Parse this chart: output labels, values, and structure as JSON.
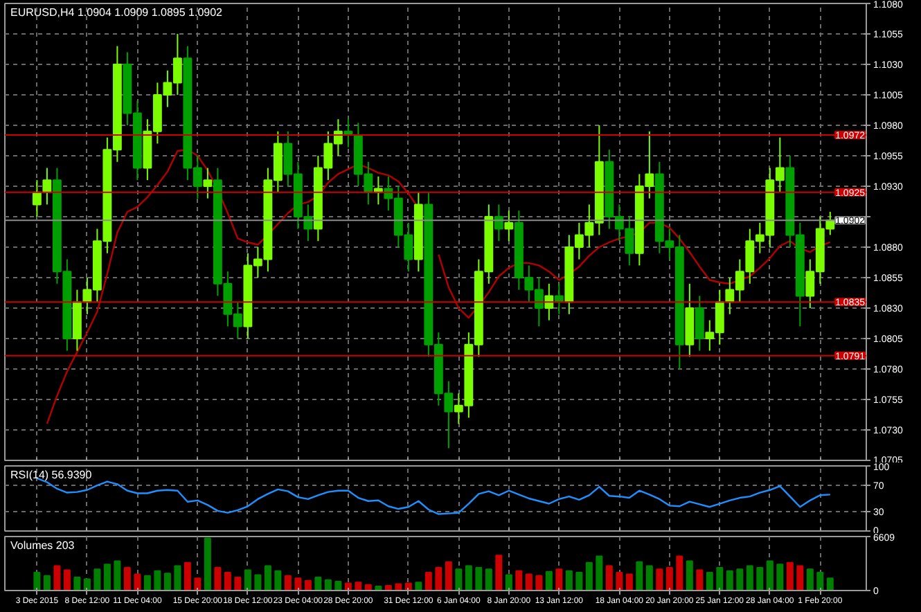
{
  "chart_data": [
    {
      "type": "candlestick",
      "title": "EURUSD,H4  1.0904 1.0909 1.0895 1.0902",
      "tick_labels": "y",
      "grid": true,
      "ohlc": [
        [
          1.0915,
          1.0935,
          1.0905,
          1.0925
        ],
        [
          1.0925,
          1.0945,
          1.0915,
          1.0935
        ],
        [
          1.0935,
          1.0945,
          1.085,
          1.086
        ],
        [
          1.086,
          1.087,
          1.0795,
          1.0805
        ],
        [
          1.0805,
          1.0845,
          1.0795,
          1.0835
        ],
        [
          1.0835,
          1.0855,
          1.0825,
          1.0845
        ],
        [
          1.0845,
          1.0895,
          1.0835,
          1.0885
        ],
        [
          1.0885,
          1.097,
          1.0875,
          1.096
        ],
        [
          1.096,
          1.1045,
          1.095,
          1.103
        ],
        [
          1.103,
          1.104,
          1.098,
          1.099
        ],
        [
          1.099,
          1.1,
          1.0935,
          1.0945
        ],
        [
          1.0945,
          1.0985,
          1.0935,
          1.0975
        ],
        [
          1.0975,
          1.1015,
          1.0965,
          1.1005
        ],
        [
          1.1005,
          1.1025,
          1.0995,
          1.1015
        ],
        [
          1.1015,
          1.1055,
          1.1005,
          1.1035
        ],
        [
          1.1035,
          1.1045,
          1.0935,
          1.0945
        ],
        [
          1.0945,
          1.0955,
          1.092,
          1.093
        ],
        [
          1.093,
          1.0945,
          1.092,
          1.0935
        ],
        [
          1.0935,
          1.0945,
          1.084,
          1.085
        ],
        [
          1.085,
          1.086,
          1.0815,
          1.0825
        ],
        [
          1.0825,
          1.0835,
          1.0805,
          1.0815
        ],
        [
          1.0815,
          1.0875,
          1.0805,
          1.0865
        ],
        [
          1.0865,
          1.088,
          1.0855,
          1.087
        ],
        [
          1.087,
          1.0945,
          1.086,
          1.0935
        ],
        [
          1.0935,
          1.0975,
          1.0925,
          1.0965
        ],
        [
          1.0965,
          1.0975,
          1.093,
          1.094
        ],
        [
          1.094,
          1.095,
          1.0895,
          1.0905
        ],
        [
          1.0905,
          1.0915,
          1.0885,
          1.0895
        ],
        [
          1.0895,
          1.0955,
          1.0885,
          1.0945
        ],
        [
          1.0945,
          1.0975,
          1.0935,
          1.0965
        ],
        [
          1.0965,
          1.0985,
          1.0955,
          1.0975
        ],
        [
          1.0975,
          1.0985,
          1.0962,
          1.0972
        ],
        [
          1.0972,
          1.0982,
          1.093,
          1.094
        ],
        [
          1.094,
          1.095,
          1.0915,
          1.0925
        ],
        [
          1.0925,
          1.0938,
          1.0915,
          1.0928
        ],
        [
          1.0928,
          1.0938,
          1.091,
          1.092
        ],
        [
          1.092,
          1.093,
          1.088,
          1.089
        ],
        [
          1.089,
          1.09,
          1.086,
          1.087
        ],
        [
          1.087,
          1.0925,
          1.086,
          1.0915
        ],
        [
          1.0915,
          1.0925,
          1.079,
          1.08
        ],
        [
          1.08,
          1.081,
          1.075,
          1.076
        ],
        [
          1.076,
          1.077,
          1.0715,
          1.0745
        ],
        [
          1.0745,
          1.076,
          1.0735,
          1.075
        ],
        [
          1.075,
          1.081,
          1.074,
          1.08
        ],
        [
          1.08,
          1.087,
          1.079,
          1.086
        ],
        [
          1.086,
          1.0915,
          1.085,
          1.0905
        ],
        [
          1.0905,
          1.0915,
          1.0885,
          1.0895
        ],
        [
          1.0895,
          1.091,
          1.0885,
          1.09
        ],
        [
          1.09,
          1.091,
          1.0845,
          1.0855
        ],
        [
          1.0855,
          1.0865,
          1.0835,
          1.0845
        ],
        [
          1.0845,
          1.0855,
          1.0815,
          1.083
        ],
        [
          1.083,
          1.085,
          1.082,
          1.084
        ],
        [
          1.084,
          1.085,
          1.0825,
          1.0835
        ],
        [
          1.0835,
          1.089,
          1.0825,
          1.088
        ],
        [
          1.088,
          1.09,
          1.087,
          1.089
        ],
        [
          1.089,
          1.0915,
          1.088,
          1.09
        ],
        [
          1.09,
          1.098,
          1.089,
          1.095
        ],
        [
          1.095,
          1.096,
          1.0895,
          1.0905
        ],
        [
          1.0905,
          1.0915,
          1.0885,
          1.0895
        ],
        [
          1.0895,
          1.0905,
          1.0865,
          1.0875
        ],
        [
          1.0875,
          1.094,
          1.0865,
          1.093
        ],
        [
          1.093,
          1.0975,
          1.092,
          1.094
        ],
        [
          1.094,
          1.095,
          1.0875,
          1.0885
        ],
        [
          1.0885,
          1.0895,
          1.087,
          1.088
        ],
        [
          1.088,
          1.089,
          1.078,
          1.08
        ],
        [
          1.08,
          1.085,
          1.079,
          1.083
        ],
        [
          1.083,
          1.084,
          1.0795,
          1.0805
        ],
        [
          1.0805,
          1.082,
          1.0795,
          1.081
        ],
        [
          1.081,
          1.0845,
          1.08,
          1.0835
        ],
        [
          1.0835,
          1.0855,
          1.0825,
          1.0845
        ],
        [
          1.0845,
          1.087,
          1.0835,
          1.086
        ],
        [
          1.086,
          1.0895,
          1.085,
          1.0885
        ],
        [
          1.0885,
          1.09,
          1.0875,
          1.089
        ],
        [
          1.089,
          1.0945,
          1.088,
          1.0935
        ],
        [
          1.0935,
          1.097,
          1.0925,
          1.0945
        ],
        [
          1.0945,
          1.0955,
          1.088,
          1.089
        ],
        [
          1.089,
          1.09,
          1.0815,
          1.084
        ],
        [
          1.084,
          1.087,
          1.083,
          1.086
        ],
        [
          1.086,
          1.0905,
          1.085,
          1.0895
        ],
        [
          1.0895,
          1.0909,
          1.089,
          1.0902
        ]
      ],
      "colors": [
        "#7cfc00",
        "#7cfc00",
        "#00a000",
        "#00a000",
        "#7cfc00",
        "#7cfc00",
        "#7cfc00",
        "#7cfc00",
        "#7cfc00",
        "#00a000",
        "#00a000",
        "#7cfc00",
        "#7cfc00",
        "#7cfc00",
        "#7cfc00",
        "#00a000",
        "#00a000",
        "#7cfc00",
        "#00a000",
        "#00a000",
        "#00a000",
        "#7cfc00",
        "#7cfc00",
        "#7cfc00",
        "#7cfc00",
        "#00a000",
        "#00a000",
        "#00a000",
        "#7cfc00",
        "#7cfc00",
        "#7cfc00",
        "#00a000",
        "#00a000",
        "#00a000",
        "#7cfc00",
        "#00a000",
        "#00a000",
        "#00a000",
        "#7cfc00",
        "#00a000",
        "#00a000",
        "#00a000",
        "#7cfc00",
        "#7cfc00",
        "#7cfc00",
        "#7cfc00",
        "#00a000",
        "#7cfc00",
        "#00a000",
        "#00a000",
        "#00a000",
        "#7cfc00",
        "#00a000",
        "#7cfc00",
        "#7cfc00",
        "#7cfc00",
        "#7cfc00",
        "#00a000",
        "#00a000",
        "#00a000",
        "#7cfc00",
        "#7cfc00",
        "#00a000",
        "#00a000",
        "#00a000",
        "#7cfc00",
        "#00a000",
        "#7cfc00",
        "#7cfc00",
        "#7cfc00",
        "#7cfc00",
        "#7cfc00",
        "#7cfc00",
        "#7cfc00",
        "#7cfc00",
        "#00a000",
        "#00a000",
        "#7cfc00",
        "#7cfc00",
        "#7cfc00"
      ],
      "series": [
        {
          "type": "line",
          "color": "#b30000",
          "values": [
            null,
            1.0735,
            1.0758,
            1.0778,
            1.0794,
            1.081,
            1.0827,
            1.0858,
            1.0892,
            1.0909,
            1.0913,
            1.0921,
            1.0931,
            1.0942,
            1.0959,
            1.096,
            1.0955,
            1.0943,
            1.0927,
            1.0908,
            1.0887,
            1.0884,
            1.0882,
            1.089,
            1.0899,
            1.0908,
            1.0915,
            1.0917,
            1.0922,
            1.0933,
            1.094,
            1.0944,
            1.0948,
            1.0945,
            1.0941,
            1.0939,
            1.0934,
            1.0924,
            1.0912,
            null,
            1.0874,
            1.0847,
            1.083,
            1.0822,
            1.0832,
            1.0843,
            1.0856,
            1.0863,
            1.0867,
            1.0867,
            1.0865,
            1.086,
            1.0853,
            1.0858,
            1.0864,
            1.0873,
            1.088,
            1.0884,
            1.0887,
            1.0889,
            1.0892,
            1.09,
            1.09,
            1.0896,
            1.0887,
            1.0876,
            1.0864,
            1.0853,
            1.0851,
            1.085,
            1.0853,
            1.0856,
            1.0863,
            1.0871,
            1.0881,
            1.0885,
            1.0879,
            1.0876,
            1.0881,
            1.0884
          ]
        }
      ],
      "ylim": [
        1.0705,
        1.108
      ],
      "yticks": [
        {
          "value": 1.0705,
          "label": "1.0705"
        },
        {
          "value": 1.073,
          "label": "1.0730"
        },
        {
          "value": 1.0755,
          "label": "1.0755"
        },
        {
          "value": 1.078,
          "label": "1.0780"
        },
        {
          "value": 1.0805,
          "label": "1.0805"
        },
        {
          "value": 1.083,
          "label": "1.0830"
        },
        {
          "value": 1.0855,
          "label": "1.0855"
        },
        {
          "value": 1.088,
          "label": "1.0880"
        },
        {
          "value": 1.0905,
          "label": null
        },
        {
          "value": 1.093,
          "label": "1.0930"
        },
        {
          "value": 1.0955,
          "label": "1.0955"
        },
        {
          "value": 1.098,
          "label": "1.0980"
        },
        {
          "value": 1.1005,
          "label": "1.1005"
        },
        {
          "value": 1.103,
          "label": "1.1030"
        },
        {
          "value": 1.1055,
          "label": "1.1055"
        },
        {
          "value": 1.108,
          "label": "1.1080"
        }
      ],
      "ref_lines": [
        {
          "axis": "y",
          "value": 1.0972,
          "label": "1.0972",
          "color": "#cc0000"
        },
        {
          "axis": "y",
          "value": 1.0925,
          "label": "1.0925",
          "color": "#cc0000"
        },
        {
          "axis": "y",
          "value": 1.0835,
          "label": "1.0835",
          "color": "#cc0000"
        },
        {
          "axis": "y",
          "value": 1.0791,
          "label": "1.0791",
          "color": "#cc0000"
        },
        {
          "axis": "y",
          "value": 1.0902,
          "label": "1.0902",
          "color": "#8c8c8c"
        }
      ]
    },
    {
      "type": "line",
      "title": "RSI(14) 56.9390",
      "tick_labels": "y",
      "grid": true,
      "series": [
        {
          "color": "#1e90ff",
          "values": [
            81,
            75,
            65,
            59,
            60,
            63,
            70,
            76,
            72,
            62,
            58,
            58,
            62,
            63,
            62,
            45,
            47,
            40,
            31,
            28,
            32,
            38,
            49,
            57,
            64,
            61,
            52,
            49,
            55,
            60,
            62,
            62,
            51,
            46,
            47,
            38,
            34,
            37,
            46,
            33,
            26,
            27,
            28,
            42,
            57,
            61,
            55,
            62,
            56,
            50,
            46,
            42,
            49,
            53,
            48,
            55,
            68,
            54,
            53,
            51,
            62,
            56,
            49,
            39,
            38,
            45,
            41,
            37,
            42,
            47,
            51,
            53,
            59,
            63,
            69,
            53,
            37,
            47,
            55,
            56
          ]
        }
      ],
      "ylim": [
        0,
        100
      ],
      "yticks": [
        0,
        30,
        70,
        100
      ]
    },
    {
      "type": "bar",
      "title": "Volumes 203",
      "grid": true,
      "categories": [
        "3 Dec 2015",
        null,
        null,
        null,
        null,
        "8 Dec 12:00",
        null,
        null,
        null,
        null,
        "11 Dec 04:00",
        null,
        null,
        null,
        null,
        null,
        "15 Dec 20:00",
        null,
        null,
        null,
        null,
        "18 Dec 12:00",
        null,
        null,
        null,
        null,
        "23 Dec 04:00",
        null,
        null,
        null,
        null,
        "28 Dec 20:00",
        null,
        null,
        null,
        null,
        null,
        "31 Dec 12:00",
        null,
        null,
        null,
        null,
        "6 Jan 04:00",
        null,
        null,
        null,
        null,
        "8 Jan 20:00",
        null,
        null,
        null,
        null,
        "13 Jan 12:00",
        null,
        null,
        null,
        null,
        null,
        "18 Jan 04:00",
        null,
        null,
        null,
        null,
        "20 Jan 20:00",
        null,
        null,
        null,
        null,
        "25 Jan 12:00",
        null,
        null,
        null,
        null,
        "28 Jan 04:00",
        null,
        null,
        null,
        null,
        "1 Feb 20:00",
        null
      ],
      "values": [
        2200,
        1800,
        3000,
        2500,
        1600,
        1400,
        2600,
        3200,
        3600,
        2800,
        2000,
        1800,
        2400,
        2100,
        3000,
        3400,
        1500,
        6400,
        2800,
        2200,
        1600,
        2500,
        1900,
        3000,
        2400,
        1800,
        1500,
        1200,
        1600,
        1300,
        1100,
        900,
        1000,
        700,
        500,
        600,
        800,
        900,
        1000,
        2200,
        2800,
        3500,
        2600,
        3000,
        2800,
        2600,
        4300,
        1900,
        2400,
        2000,
        1800,
        2300,
        2600,
        2400,
        2200,
        3400,
        4200,
        3000,
        2200,
        2000,
        3500,
        3000,
        2600,
        2800,
        4200,
        3600,
        2500,
        2200,
        2800,
        2400,
        2600,
        3000,
        2800,
        3600,
        3200,
        3400,
        3000,
        2600,
        2200,
        1500
      ],
      "colors": [
        "#008000",
        "#008000",
        "#cc0000",
        "#cc0000",
        "#008000",
        "#008000",
        "#008000",
        "#008000",
        "#008000",
        "#cc0000",
        "#cc0000",
        "#008000",
        "#008000",
        "#008000",
        "#008000",
        "#cc0000",
        "#cc0000",
        "#008000",
        "#cc0000",
        "#cc0000",
        "#cc0000",
        "#008000",
        "#008000",
        "#008000",
        "#008000",
        "#cc0000",
        "#cc0000",
        "#cc0000",
        "#008000",
        "#008000",
        "#008000",
        "#cc0000",
        "#cc0000",
        "#cc0000",
        "#008000",
        "#cc0000",
        "#cc0000",
        "#cc0000",
        "#008000",
        "#cc0000",
        "#cc0000",
        "#cc0000",
        "#008000",
        "#008000",
        "#008000",
        "#008000",
        "#cc0000",
        "#008000",
        "#cc0000",
        "#cc0000",
        "#cc0000",
        "#008000",
        "#cc0000",
        "#008000",
        "#008000",
        "#008000",
        "#008000",
        "#cc0000",
        "#cc0000",
        "#cc0000",
        "#008000",
        "#008000",
        "#cc0000",
        "#cc0000",
        "#cc0000",
        "#008000",
        "#cc0000",
        "#008000",
        "#008000",
        "#008000",
        "#008000",
        "#008000",
        "#008000",
        "#008000",
        "#008000",
        "#cc0000",
        "#cc0000",
        "#008000",
        "#008000",
        "#008000"
      ],
      "ylim": [
        0,
        6609
      ],
      "yticks": [
        0,
        6609
      ]
    }
  ]
}
